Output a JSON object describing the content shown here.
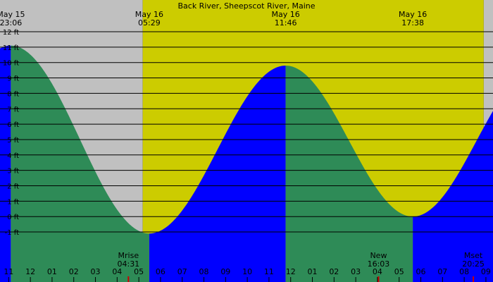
{
  "chart_data": {
    "type": "area",
    "title": "Back River, Sheepscot River, Maine",
    "time_range": [
      "22:00",
      "22:30"
    ],
    "colors": {
      "night": "#c0c0c0",
      "day": "#cccc00",
      "falling": "#2e8b57",
      "rising": "#0000ff",
      "grid": "#000000",
      "moon_tick": "#cc0000"
    },
    "ylim": [
      -1.8,
      12.2
    ],
    "y_ticks": [
      {
        "value": 12,
        "label": "12 ft"
      },
      {
        "value": 11,
        "label": "11 ft"
      },
      {
        "value": 10,
        "label": "10 ft"
      },
      {
        "value": 9,
        "label": "9 ft"
      },
      {
        "value": 8,
        "label": "8 ft"
      },
      {
        "value": 7,
        "label": "7 ft"
      },
      {
        "value": 6,
        "label": "6 ft"
      },
      {
        "value": 5,
        "label": "5 ft"
      },
      {
        "value": 4,
        "label": "4 ft"
      },
      {
        "value": 3,
        "label": "3 ft"
      },
      {
        "value": 2,
        "label": "2 ft"
      },
      {
        "value": 1,
        "label": "1 ft"
      },
      {
        "value": 0,
        "label": "0 ft"
      },
      {
        "value": -1,
        "label": "-1 ft"
      }
    ],
    "x_ticks": [
      {
        "hour": 23,
        "label": "11"
      },
      {
        "hour": 24,
        "label": "12"
      },
      {
        "hour": 25,
        "label": "01"
      },
      {
        "hour": 26,
        "label": "02"
      },
      {
        "hour": 27,
        "label": "03"
      },
      {
        "hour": 28,
        "label": "04"
      },
      {
        "hour": 29,
        "label": "05"
      },
      {
        "hour": 30,
        "label": "06"
      },
      {
        "hour": 31,
        "label": "07"
      },
      {
        "hour": 32,
        "label": "08"
      },
      {
        "hour": 33,
        "label": "09"
      },
      {
        "hour": 34,
        "label": "10"
      },
      {
        "hour": 35,
        "label": "11"
      },
      {
        "hour": 36,
        "label": "12"
      },
      {
        "hour": 37,
        "label": "01"
      },
      {
        "hour": 38,
        "label": "02"
      },
      {
        "hour": 39,
        "label": "03"
      },
      {
        "hour": 40,
        "label": "04"
      },
      {
        "hour": 41,
        "label": "05"
      },
      {
        "hour": 42,
        "label": "06"
      },
      {
        "hour": 43,
        "label": "07"
      },
      {
        "hour": 44,
        "label": "08"
      },
      {
        "hour": 45,
        "label": "09"
      }
    ],
    "extremes": [
      {
        "date": "May 15",
        "time": "23:06",
        "hour": 23.1,
        "height": 11.1
      },
      {
        "date": "May 16",
        "time": "05:29",
        "hour": 29.48,
        "height": -1.1
      },
      {
        "date": "May 16",
        "time": "11:46",
        "hour": 35.77,
        "height": 9.8
      },
      {
        "date": "May 16",
        "time": "17:38",
        "hour": 41.63,
        "height": 0.0
      }
    ],
    "daylight": {
      "start_hour": 29.18,
      "end_hour": 44.9
    },
    "moon_events": [
      {
        "label": "Mrise",
        "time": "04:31",
        "hour": 28.52
      },
      {
        "label": "New",
        "time": "16:03",
        "hour": 40.05
      },
      {
        "label": "Mset",
        "time": "20:25",
        "hour": 44.42
      }
    ]
  }
}
